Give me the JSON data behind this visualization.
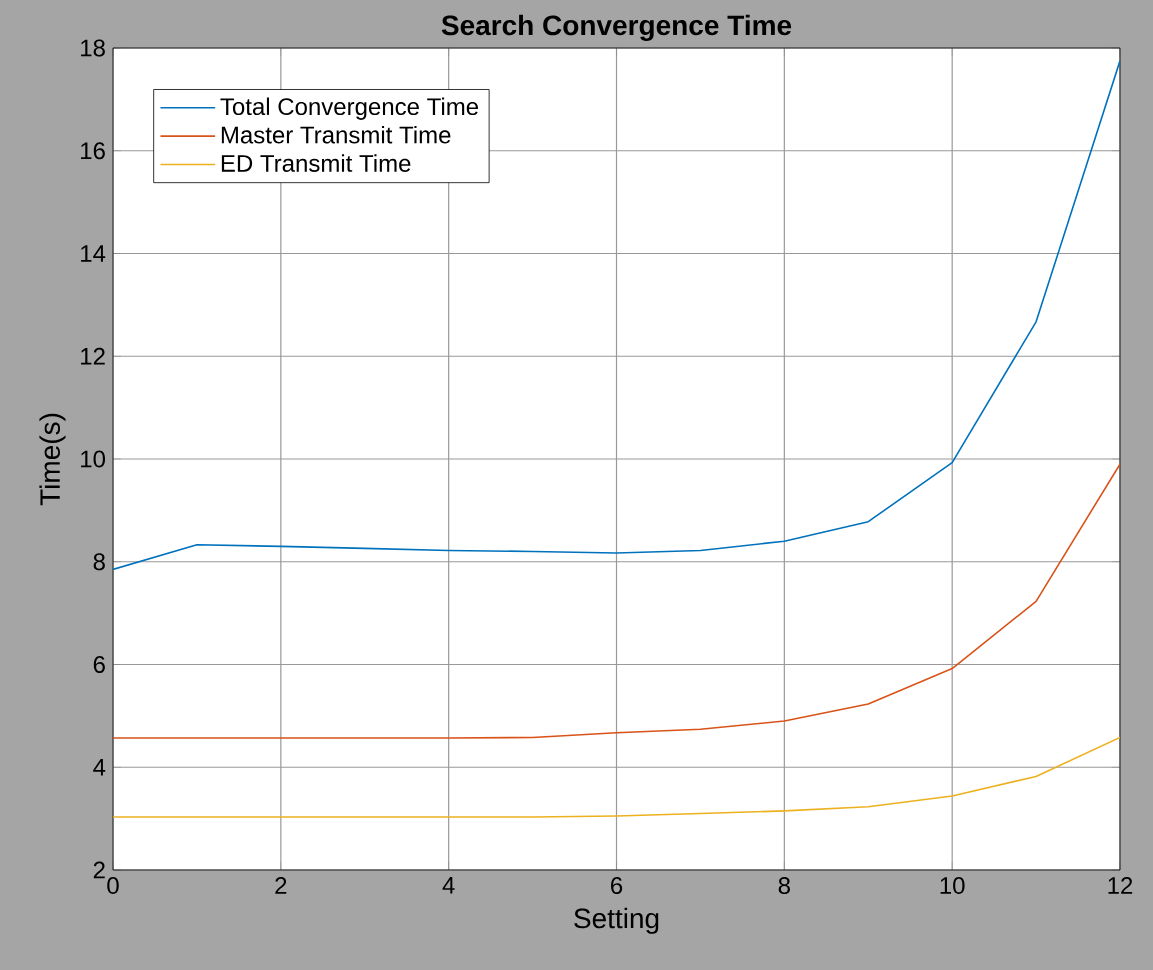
{
  "chart_data": {
    "type": "line",
    "title": "Search Convergence Time",
    "xlabel": "Setting",
    "ylabel": "Time(s)",
    "x": [
      0,
      1,
      2,
      3,
      4,
      5,
      6,
      7,
      8,
      9,
      10,
      11,
      12
    ],
    "series": [
      {
        "name": "Total Convergence Time",
        "color": "#0072bd",
        "values": [
          7.85,
          8.33,
          8.3,
          8.26,
          8.22,
          8.2,
          8.17,
          8.22,
          8.4,
          8.78,
          9.93,
          12.67,
          17.75
        ]
      },
      {
        "name": "Master Transmit Time",
        "color": "#d95319",
        "values": [
          4.57,
          4.57,
          4.57,
          4.57,
          4.57,
          4.58,
          4.67,
          4.74,
          4.9,
          5.23,
          5.92,
          7.23,
          9.9
        ]
      },
      {
        "name": "ED Transmit Time",
        "color": "#edb120",
        "values": [
          3.03,
          3.03,
          3.03,
          3.03,
          3.03,
          3.03,
          3.05,
          3.1,
          3.15,
          3.23,
          3.44,
          3.82,
          4.58
        ]
      }
    ],
    "xlim": [
      0,
      12
    ],
    "ylim": [
      2,
      18
    ],
    "xticks": [
      0,
      2,
      4,
      6,
      8,
      10,
      12
    ],
    "yticks": [
      2,
      4,
      6,
      8,
      10,
      12,
      14,
      16,
      18
    ],
    "grid": true,
    "legend": "top left",
    "marker": "none",
    "line_style": "solid"
  }
}
